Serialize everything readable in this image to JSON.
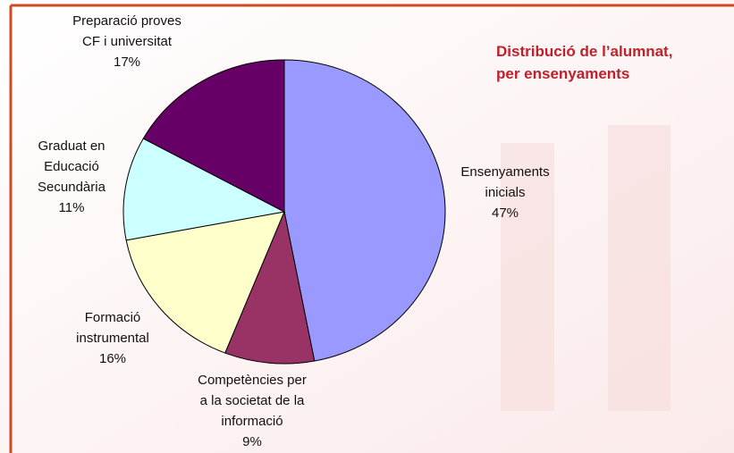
{
  "chart_data": {
    "type": "pie",
    "title": [
      "Distribució de l’alumnat,",
      "per ensenyaments"
    ],
    "categories": [
      [
        "Ensenyaments",
        "inicials"
      ],
      [
        "Competències per",
        "a la societat de la",
        "informació"
      ],
      [
        "Formació",
        "instrumental"
      ],
      [
        "Graduat en",
        "Educació",
        "Secundària"
      ],
      [
        "Preparació proves",
        "CF i universitat"
      ]
    ],
    "values": [
      47,
      9,
      16,
      11,
      17
    ],
    "value_labels": [
      "47%",
      "9%",
      "16%",
      "11%",
      "17%"
    ],
    "colors": [
      "#9999ff",
      "#993366",
      "#ffffcc",
      "#ccffff",
      "#660066"
    ]
  }
}
